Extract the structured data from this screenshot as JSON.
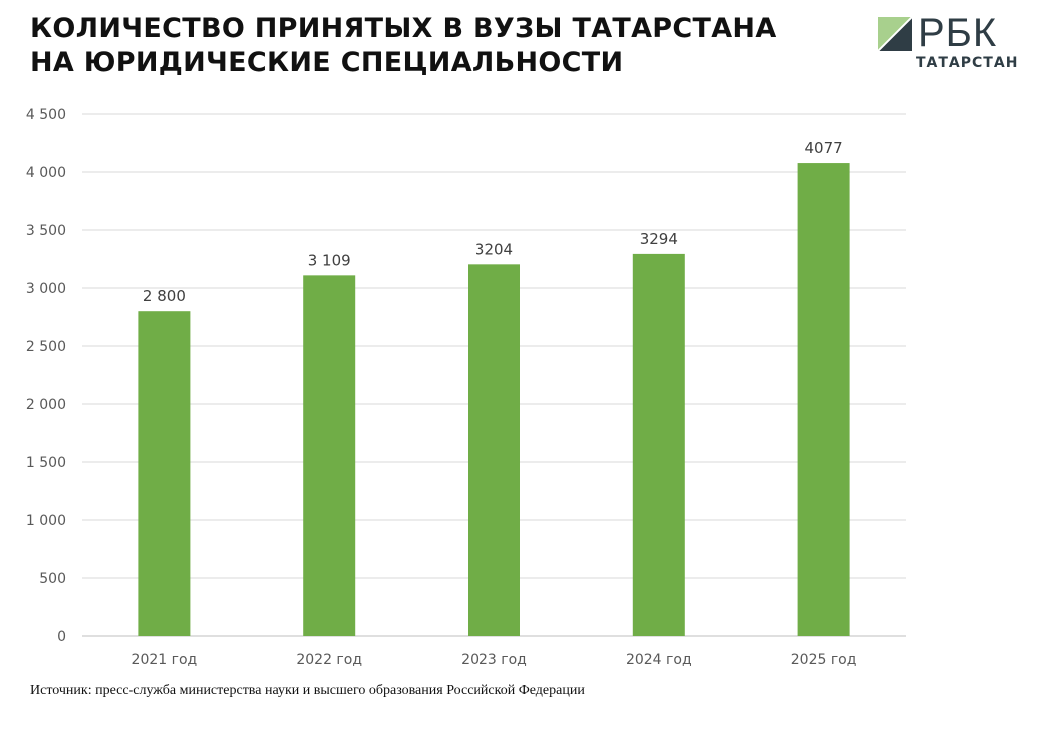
{
  "title": {
    "line1": "КОЛИЧЕСТВО ПРИНЯТЫХ В ВУЗЫ ТАТАРСТАНА",
    "line2": "НА ЮРИДИЧЕСКИЕ СПЕЦИАЛЬНОСТИ"
  },
  "logo": {
    "name": "РБК",
    "region": "ТАТАРСТАН",
    "icon": "rbc-logo-mark"
  },
  "source": "Источник: пресс-служба министерства науки и высшего образования Российской Федерации",
  "colors": {
    "bar": "#70ad47",
    "grid": "#d9d9d9",
    "axis_text": "#595959",
    "label_text": "#404040",
    "logo_dark": "#2f3d45",
    "logo_light": "#a8d08d"
  },
  "chart_data": {
    "type": "bar",
    "categories": [
      "2021 год",
      "2022 год",
      "2023 год",
      "2024 год",
      "2025 год"
    ],
    "values": [
      2800,
      3109,
      3204,
      3294,
      4077
    ],
    "value_labels": [
      "2 800",
      "3 109",
      "3204",
      "3294",
      "4077"
    ],
    "ylim": [
      0,
      4500
    ],
    "yticks": [
      0,
      500,
      1000,
      1500,
      2000,
      2500,
      3000,
      3500,
      4000,
      4500
    ],
    "ytick_labels": [
      "0",
      "500",
      "1 000",
      "1 500",
      "2 000",
      "2 500",
      "3 000",
      "3 500",
      "4 000",
      "4 500"
    ],
    "xlabel": "",
    "ylabel": "",
    "grid": true,
    "legend": "none"
  }
}
